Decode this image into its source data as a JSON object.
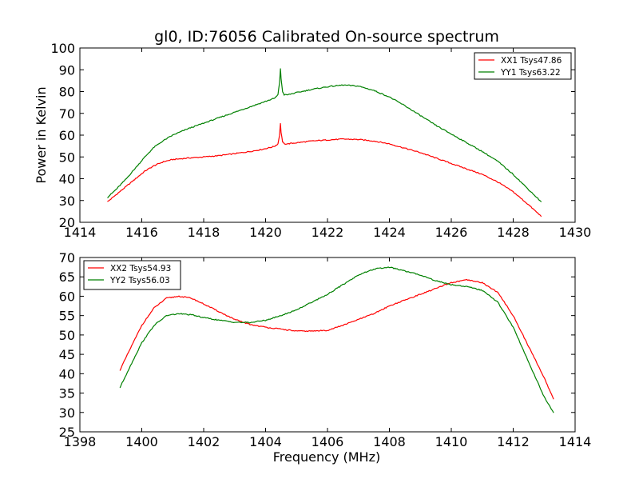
{
  "figure": {
    "title": "gl0, ID:76056 Calibrated On-source spectrum",
    "shared_xlabel": "Frequency (MHz)",
    "shared_ylabel": "Power in Kelvin"
  },
  "chart_data": [
    {
      "type": "line",
      "title": "gl0, ID:76056 Calibrated On-source spectrum",
      "xlabel": "",
      "ylabel": "Power in Kelvin",
      "xlim": [
        1414,
        1430
      ],
      "ylim": [
        20,
        100
      ],
      "xticks": [
        1414,
        1416,
        1418,
        1420,
        1422,
        1424,
        1426,
        1428,
        1430
      ],
      "yticks": [
        20,
        30,
        40,
        50,
        60,
        70,
        80,
        90,
        100
      ],
      "grid": false,
      "legend_position": "top-right",
      "series": [
        {
          "name": "XX1 Tsys47.86",
          "color": "#ff0000",
          "x": [
            1414.9,
            1415.2,
            1415.5,
            1415.8,
            1416.1,
            1416.4,
            1416.7,
            1417.0,
            1417.5,
            1418.0,
            1418.5,
            1419.0,
            1419.5,
            1419.9,
            1420.2,
            1420.3,
            1420.4,
            1420.45,
            1420.48,
            1420.5,
            1420.55,
            1420.6,
            1420.7,
            1421.0,
            1421.5,
            1422.0,
            1422.5,
            1423.0,
            1423.5,
            1424.0,
            1424.5,
            1425.0,
            1425.5,
            1426.0,
            1426.5,
            1427.0,
            1427.5,
            1428.0,
            1428.5,
            1428.9
          ],
          "y": [
            29.5,
            33.0,
            36.5,
            40.0,
            43.5,
            46.0,
            47.8,
            48.8,
            49.5,
            50.0,
            50.6,
            51.5,
            52.5,
            53.5,
            54.5,
            55.0,
            56.0,
            60.0,
            65.5,
            61.0,
            57.0,
            56.0,
            56.0,
            56.5,
            57.3,
            57.8,
            58.2,
            58.0,
            57.3,
            56.0,
            54.0,
            52.0,
            49.5,
            47.0,
            44.5,
            42.0,
            38.5,
            34.0,
            28.0,
            22.8
          ]
        },
        {
          "name": "YY1 Tsys63.22",
          "color": "#008000",
          "x": [
            1414.9,
            1415.2,
            1415.5,
            1415.8,
            1416.1,
            1416.4,
            1416.7,
            1417.0,
            1417.5,
            1418.0,
            1418.5,
            1419.0,
            1419.5,
            1419.9,
            1420.2,
            1420.3,
            1420.4,
            1420.45,
            1420.48,
            1420.5,
            1420.55,
            1420.6,
            1420.7,
            1421.0,
            1421.5,
            1422.0,
            1422.5,
            1423.0,
            1423.5,
            1424.0,
            1424.5,
            1425.0,
            1425.5,
            1426.0,
            1426.5,
            1427.0,
            1427.5,
            1428.0,
            1428.5,
            1428.9
          ],
          "y": [
            31.5,
            35.5,
            40.0,
            45.0,
            50.0,
            54.5,
            57.5,
            60.0,
            63.0,
            65.5,
            68.0,
            70.5,
            73.0,
            75.0,
            76.5,
            77.0,
            78.5,
            84.0,
            90.5,
            86.0,
            80.0,
            78.5,
            78.5,
            79.5,
            81.0,
            82.2,
            83.0,
            82.5,
            80.5,
            77.5,
            73.5,
            69.0,
            64.5,
            60.5,
            56.5,
            52.5,
            48.0,
            42.0,
            35.0,
            29.5
          ]
        }
      ]
    },
    {
      "type": "line",
      "title": "",
      "xlabel": "Frequency (MHz)",
      "ylabel": "",
      "xlim": [
        1398,
        1414
      ],
      "ylim": [
        25,
        70
      ],
      "xticks": [
        1398,
        1400,
        1402,
        1404,
        1406,
        1408,
        1410,
        1412,
        1414
      ],
      "yticks": [
        25,
        30,
        35,
        40,
        45,
        50,
        55,
        60,
        65,
        70
      ],
      "grid": false,
      "legend_position": "top-left",
      "series": [
        {
          "name": "XX2 Tsys54.93",
          "color": "#ff0000",
          "x": [
            1399.3,
            1399.6,
            1400.0,
            1400.4,
            1400.8,
            1401.2,
            1401.6,
            1402.0,
            1402.5,
            1403.0,
            1403.5,
            1404.0,
            1404.5,
            1405.0,
            1405.5,
            1406.0,
            1406.5,
            1407.0,
            1407.5,
            1408.0,
            1408.5,
            1409.0,
            1409.5,
            1410.0,
            1410.5,
            1411.0,
            1411.5,
            1412.0,
            1412.5,
            1413.0,
            1413.3
          ],
          "y": [
            41.0,
            46.0,
            52.5,
            57.0,
            59.5,
            60.0,
            59.5,
            58.0,
            56.0,
            54.0,
            52.7,
            52.0,
            51.5,
            51.0,
            51.0,
            51.2,
            52.5,
            54.0,
            55.5,
            57.5,
            59.0,
            60.5,
            62.0,
            63.5,
            64.2,
            63.5,
            61.0,
            55.0,
            47.0,
            39.0,
            33.5
          ]
        },
        {
          "name": "YY2 Tsys56.03",
          "color": "#008000",
          "x": [
            1399.3,
            1399.6,
            1400.0,
            1400.4,
            1400.8,
            1401.2,
            1401.6,
            1402.0,
            1402.5,
            1403.0,
            1403.5,
            1404.0,
            1404.5,
            1405.0,
            1405.5,
            1406.0,
            1406.5,
            1407.0,
            1407.5,
            1408.0,
            1408.5,
            1409.0,
            1409.5,
            1410.0,
            1410.5,
            1411.0,
            1411.5,
            1412.0,
            1412.5,
            1413.0,
            1413.3
          ],
          "y": [
            36.5,
            41.5,
            48.0,
            52.5,
            55.0,
            55.5,
            55.2,
            54.5,
            53.8,
            53.3,
            53.2,
            53.8,
            55.0,
            56.5,
            58.5,
            60.5,
            63.0,
            65.5,
            67.0,
            67.5,
            66.5,
            65.5,
            64.0,
            63.0,
            62.5,
            61.5,
            58.5,
            52.0,
            43.0,
            34.0,
            30.0
          ]
        }
      ]
    }
  ]
}
